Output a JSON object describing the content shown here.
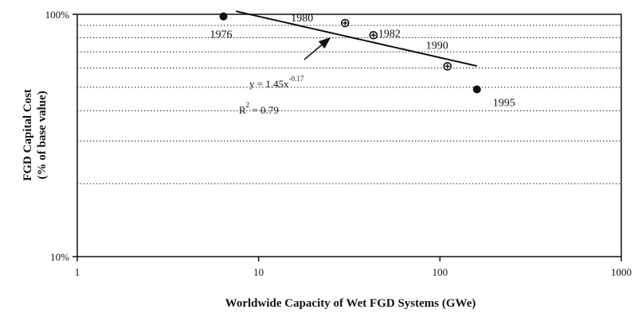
{
  "chart_data": {
    "type": "scatter",
    "title": "",
    "xlabel": "Worldwide Capacity of Wet FGD Systems (GWe)",
    "ylabel_lines": [
      "FGD Capital Cost",
      "(% of base value)"
    ],
    "x_scale": "log",
    "y_scale": "log",
    "xlim": [
      1,
      1000
    ],
    "ylim": [
      10,
      100
    ],
    "x_ticks": [
      1,
      10,
      100,
      1000
    ],
    "x_tick_labels": [
      "1",
      "10",
      "100",
      "1000"
    ],
    "y_ticks": [
      10,
      100
    ],
    "y_tick_labels": [
      "10%",
      "100%"
    ],
    "grid": "horizontal-dotted",
    "grid_values": [
      20,
      30,
      40,
      50,
      60,
      70,
      80,
      90
    ],
    "points": [
      {
        "label": "1976",
        "x": 6.4,
        "y": 98,
        "marker": "filled"
      },
      {
        "label": "1980",
        "x": 30,
        "y": 92,
        "marker": "crossed"
      },
      {
        "label": "1982",
        "x": 43,
        "y": 82,
        "marker": "crossed"
      },
      {
        "label": "1990",
        "x": 110,
        "y": 61,
        "marker": "crossed"
      },
      {
        "label": "1995",
        "x": 160,
        "y": 49,
        "marker": "filled"
      }
    ],
    "fit": {
      "type": "power",
      "coefficient": 1.45,
      "exponent": -0.17,
      "x_range": [
        7.5,
        160
      ],
      "equation_base": "y = 1.45x",
      "equation_exponent": "-0.17",
      "r2_base": "R",
      "r2_exponent": "2",
      "r2_value": " = 0.79"
    }
  }
}
